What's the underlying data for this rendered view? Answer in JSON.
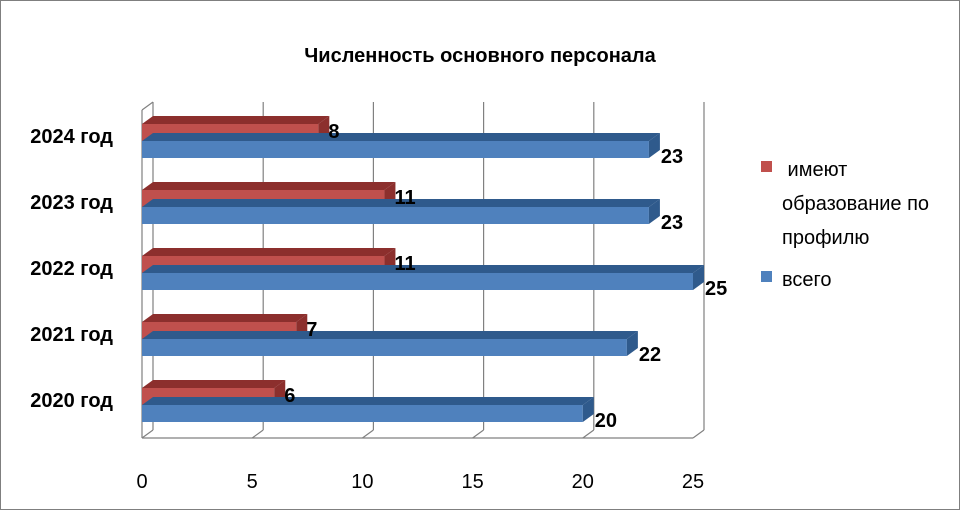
{
  "chart_data": {
    "type": "bar",
    "orientation": "horizontal",
    "title": "Численность основного персонала",
    "categories": [
      "2020 год",
      "2021 год",
      "2022 год",
      "2023 год",
      "2024 год"
    ],
    "series": [
      {
        "name": "всего",
        "values": [
          20,
          22,
          25,
          23,
          23
        ],
        "color": "#4f81bd",
        "color_dark": "#2f5a8c"
      },
      {
        "name": "имеют образование по профилю",
        "values": [
          6,
          7,
          11,
          11,
          8
        ],
        "color": "#c0504d",
        "color_dark": "#8c2f2d"
      }
    ],
    "legend_lines": {
      "имеют образование по профилю": [
        " имеют",
        "образование по",
        "профилю"
      ],
      "всего": [
        "всего"
      ]
    },
    "legend_order": [
      "имеют образование по профилю",
      "всего"
    ],
    "xlim": [
      0,
      25
    ],
    "xticks": [
      0,
      5,
      10,
      15,
      20,
      25
    ],
    "grid": true,
    "legend_position": "right",
    "xlabel": "",
    "ylabel": ""
  }
}
